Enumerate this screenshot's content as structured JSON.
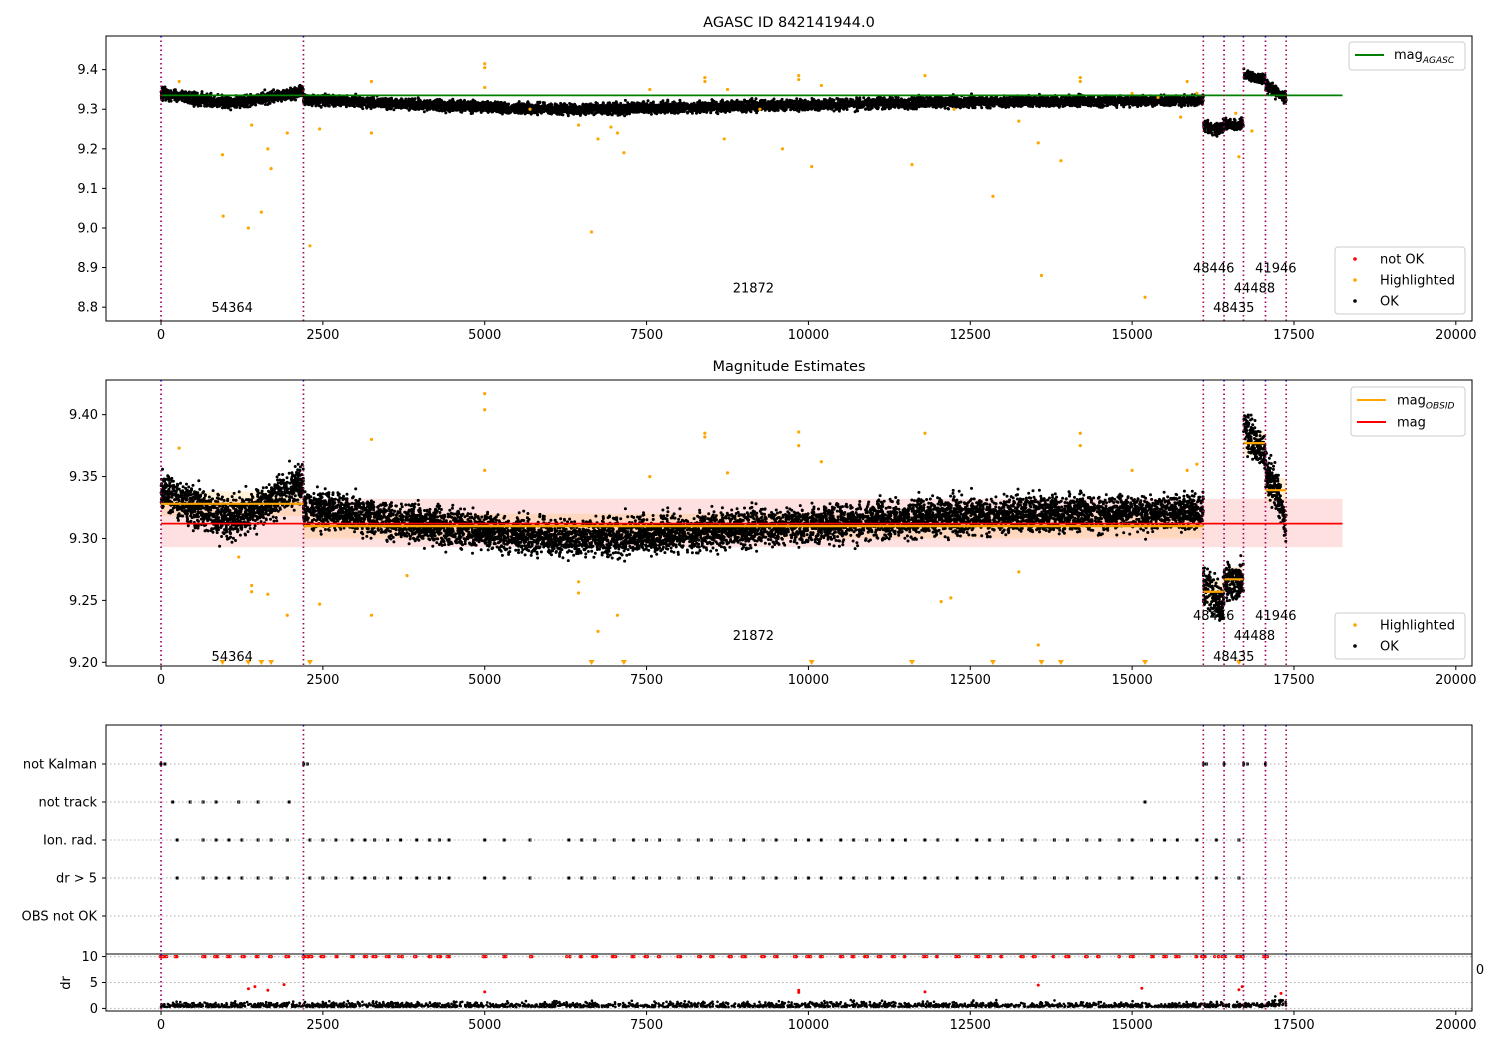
{
  "chart_data": [
    {
      "type": "scatter",
      "title": "AGASC ID 842141944.0",
      "xlim": [
        -850,
        20250
      ],
      "ylim": [
        8.765,
        9.485
      ],
      "xticks": [
        "0",
        "2500",
        "5000",
        "7500",
        "10000",
        "12500",
        "15000",
        "17500",
        "20000"
      ],
      "yticks": [
        "8.8",
        "8.9",
        "9.0",
        "9.1",
        "9.2",
        "9.3",
        "9.4"
      ],
      "hline": {
        "name": "mag",
        "sub": "AGASC",
        "value": 9.335,
        "color": "#008000",
        "x": [
          0,
          18250
        ]
      },
      "legend_line": {
        "entries": [
          {
            "name": "mag",
            "sub": "AGASC",
            "color": "#008000"
          }
        ]
      },
      "legend_points": {
        "entries": [
          {
            "name": "not OK",
            "color": "#ff0000"
          },
          {
            "name": "Highlighted",
            "color": "#ffa500"
          },
          {
            "name": "OK",
            "color": "#000000"
          }
        ]
      },
      "segments": [
        {
          "x": [
            0,
            2200
          ],
          "ok_shape": [
            9.34,
            9.325,
            9.315,
            9.33,
            9.345
          ],
          "spread": 0.012
        },
        {
          "x": [
            2200,
            16100
          ],
          "ok_shape": [
            9.325,
            9.31,
            9.3,
            9.305,
            9.312,
            9.318,
            9.32,
            9.322
          ],
          "spread": 0.011
        },
        {
          "x": [
            16100,
            16420
          ],
          "ok_shape": [
            9.26,
            9.25,
            9.255
          ],
          "spread": 0.012
        },
        {
          "x": [
            16420,
            16720
          ],
          "ok_shape": [
            9.262,
            9.258,
            9.265
          ],
          "spread": 0.01
        },
        {
          "x": [
            16720,
            17060
          ],
          "ok_shape": [
            9.39,
            9.38,
            9.375
          ],
          "spread": 0.01
        },
        {
          "x": [
            17060,
            17380
          ],
          "ok_shape": [
            9.36,
            9.345,
            9.33
          ],
          "spread": 0.012
        }
      ],
      "highlighted": [
        [
          280,
          9.37
        ],
        [
          950,
          9.185
        ],
        [
          960,
          9.03
        ],
        [
          1350,
          9.0
        ],
        [
          1400,
          9.26
        ],
        [
          1550,
          9.04
        ],
        [
          1650,
          9.2
        ],
        [
          1700,
          9.15
        ],
        [
          1950,
          9.24
        ],
        [
          2300,
          8.955
        ],
        [
          2450,
          9.25
        ],
        [
          3250,
          9.24
        ],
        [
          3250,
          9.37
        ],
        [
          5000,
          9.415
        ],
        [
          5000,
          9.405
        ],
        [
          5000,
          9.355
        ],
        [
          5700,
          9.3
        ],
        [
          6450,
          9.26
        ],
        [
          6650,
          8.99
        ],
        [
          6750,
          9.225
        ],
        [
          6950,
          9.255
        ],
        [
          7050,
          9.24
        ],
        [
          7150,
          9.19
        ],
        [
          7550,
          9.35
        ],
        [
          8400,
          9.38
        ],
        [
          8400,
          9.37
        ],
        [
          8700,
          9.225
        ],
        [
          8750,
          9.35
        ],
        [
          9250,
          9.3
        ],
        [
          9600,
          9.2
        ],
        [
          9850,
          9.385
        ],
        [
          9850,
          9.375
        ],
        [
          10050,
          9.155
        ],
        [
          10200,
          9.36
        ],
        [
          11600,
          9.16
        ],
        [
          11800,
          9.385
        ],
        [
          12250,
          9.3
        ],
        [
          12850,
          9.08
        ],
        [
          13250,
          9.27
        ],
        [
          13550,
          9.215
        ],
        [
          13600,
          8.88
        ],
        [
          13900,
          9.17
        ],
        [
          14200,
          9.38
        ],
        [
          14200,
          9.37
        ],
        [
          15000,
          9.34
        ],
        [
          15200,
          8.825
        ],
        [
          15400,
          9.33
        ],
        [
          15750,
          9.28
        ],
        [
          15850,
          9.37
        ],
        [
          16000,
          9.34
        ],
        [
          16650,
          9.18
        ],
        [
          16600,
          9.29
        ],
        [
          16850,
          9.245
        ]
      ],
      "vlines": [
        0,
        2200,
        16100,
        16420,
        16720,
        17060,
        17380
      ],
      "obs_labels": [
        {
          "text": "54364",
          "x": 1100,
          "y": 8.8
        },
        {
          "text": "21872",
          "x": 9150,
          "y": 8.85
        },
        {
          "text": "48446",
          "x": 16260,
          "y": 8.9
        },
        {
          "text": "48435",
          "x": 16570,
          "y": 8.8
        },
        {
          "text": "44488",
          "x": 16890,
          "y": 8.85
        },
        {
          "text": "41946",
          "x": 17220,
          "y": 8.9
        }
      ]
    },
    {
      "type": "scatter",
      "title": "Magnitude Estimates",
      "xlim": [
        -850,
        20250
      ],
      "ylim": [
        9.197,
        9.428
      ],
      "xticks": [
        "0",
        "2500",
        "5000",
        "7500",
        "10000",
        "12500",
        "15000",
        "17500",
        "20000"
      ],
      "yticks": [
        "9.20",
        "9.25",
        "9.30",
        "9.35",
        "9.40"
      ],
      "mag": {
        "name": "mag",
        "value": 9.312,
        "band": [
          9.293,
          9.332
        ],
        "color": "#ff0000",
        "x": [
          0,
          18250
        ]
      },
      "obsid_mag": [
        {
          "x": [
            0,
            2200
          ],
          "value": 9.328
        },
        {
          "x": [
            2200,
            16100
          ],
          "value": 9.31
        },
        {
          "x": [
            16100,
            16420
          ],
          "value": 9.257
        },
        {
          "x": [
            16420,
            16720
          ],
          "value": 9.267
        },
        {
          "x": [
            16720,
            17060
          ],
          "value": 9.377
        },
        {
          "x": [
            17060,
            17380
          ],
          "value": 9.339
        }
      ],
      "legend_line": {
        "entries": [
          {
            "name": "mag",
            "sub": "OBSID",
            "color": "#ffa500"
          },
          {
            "name": "mag",
            "sub": "",
            "color": "#ff0000"
          }
        ]
      },
      "legend_points": {
        "entries": [
          {
            "name": "Highlighted",
            "color": "#ffa500"
          },
          {
            "name": "OK",
            "color": "#000000"
          }
        ]
      },
      "segments": [
        {
          "x": [
            0,
            2200
          ],
          "ok_shape": [
            9.338,
            9.325,
            9.315,
            9.33,
            9.345
          ],
          "spread": 0.013
        },
        {
          "x": [
            2200,
            16100
          ],
          "ok_shape": [
            9.325,
            9.31,
            9.3,
            9.305,
            9.312,
            9.318,
            9.32,
            9.322
          ],
          "spread": 0.012
        },
        {
          "x": [
            16100,
            16420
          ],
          "ok_shape": [
            9.265,
            9.252,
            9.25
          ],
          "spread": 0.014
        },
        {
          "x": [
            16420,
            16720
          ],
          "ok_shape": [
            9.268,
            9.262,
            9.268
          ],
          "spread": 0.012
        },
        {
          "x": [
            16720,
            17060
          ],
          "ok_shape": [
            9.39,
            9.378,
            9.37
          ],
          "spread": 0.012
        },
        {
          "x": [
            17060,
            17380
          ],
          "ok_shape": [
            9.355,
            9.34,
            9.31
          ],
          "spread": 0.014
        }
      ],
      "highlighted": [
        [
          280,
          9.373
        ],
        [
          1200,
          9.285
        ],
        [
          1400,
          9.262
        ],
        [
          1400,
          9.257
        ],
        [
          1650,
          9.255
        ],
        [
          1950,
          9.238
        ],
        [
          2450,
          9.247
        ],
        [
          3250,
          9.38
        ],
        [
          3250,
          9.238
        ],
        [
          3800,
          9.27
        ],
        [
          5000,
          9.417
        ],
        [
          5000,
          9.404
        ],
        [
          5000,
          9.355
        ],
        [
          6450,
          9.256
        ],
        [
          6450,
          9.265
        ],
        [
          6750,
          9.225
        ],
        [
          7050,
          9.238
        ],
        [
          7550,
          9.35
        ],
        [
          8400,
          9.385
        ],
        [
          8400,
          9.382
        ],
        [
          8750,
          9.353
        ],
        [
          9850,
          9.386
        ],
        [
          9850,
          9.375
        ],
        [
          10200,
          9.362
        ],
        [
          11800,
          9.385
        ],
        [
          12050,
          9.249
        ],
        [
          12200,
          9.252
        ],
        [
          13250,
          9.273
        ],
        [
          13550,
          9.214
        ],
        [
          14200,
          9.385
        ],
        [
          14200,
          9.375
        ],
        [
          15000,
          9.355
        ],
        [
          15850,
          9.355
        ],
        [
          16000,
          9.36
        ]
      ],
      "low_markers": [
        950,
        1350,
        1550,
        1700,
        2300,
        6650,
        7150,
        10050,
        11600,
        12850,
        13600,
        13900,
        15200,
        16650
      ],
      "vlines": [
        0,
        2200,
        16100,
        16420,
        16720,
        17060,
        17380
      ],
      "obs_labels": [
        {
          "text": "54364",
          "x": 1100,
          "y": 9.205
        },
        {
          "text": "21872",
          "x": 9150,
          "y": 9.222
        },
        {
          "text": "48446",
          "x": 16260,
          "y": 9.238
        },
        {
          "text": "48435",
          "x": 16570,
          "y": 9.205
        },
        {
          "text": "44488",
          "x": 16890,
          "y": 9.222
        },
        {
          "text": "41946",
          "x": 17220,
          "y": 9.238
        }
      ]
    },
    {
      "type": "scatter",
      "title": "",
      "xlim": [
        -850,
        20250
      ],
      "categories": [
        "not Kalman",
        "not track",
        "Ion. rad.",
        "dr > 5",
        "OBS not OK"
      ],
      "flags": {
        "not Kalman": [
          0,
          60,
          2200,
          2260,
          16100,
          16150,
          16420,
          16720,
          16780,
          17060
        ],
        "not track": [
          180,
          450,
          650,
          850,
          1200,
          1500,
          1980,
          15200
        ],
        "Ion. rad.": [
          250,
          650,
          850,
          1050,
          1250,
          1500,
          1700,
          1950,
          2300,
          2500,
          2700,
          2950,
          3150,
          3300,
          3500,
          3700,
          3950,
          4150,
          4300,
          4450,
          5000,
          5300,
          5700,
          6300,
          6500,
          6700,
          7000,
          7300,
          7500,
          7700,
          8000,
          8300,
          8500,
          8800,
          9000,
          9300,
          9500,
          9800,
          10000,
          10200,
          10500,
          10700,
          10900,
          11100,
          11300,
          11500,
          11800,
          12000,
          12300,
          12600,
          12800,
          13000,
          13300,
          13500,
          13800,
          14000,
          14300,
          14500,
          14800,
          15000,
          15300,
          15500,
          15700,
          16000,
          16300,
          16650
        ],
        "dr > 5": [
          250,
          650,
          850,
          1050,
          1250,
          1500,
          1700,
          1950,
          2300,
          2500,
          2700,
          2950,
          3150,
          3300,
          3500,
          3700,
          3950,
          4150,
          4300,
          4450,
          5000,
          5300,
          5700,
          6300,
          6500,
          6700,
          7000,
          7300,
          7500,
          7700,
          8000,
          8300,
          8500,
          8800,
          9000,
          9300,
          9500,
          9800,
          10000,
          10200,
          10500,
          10700,
          10900,
          11100,
          11300,
          11500,
          11800,
          12000,
          12300,
          12600,
          12800,
          13000,
          13300,
          13500,
          13800,
          14000,
          14300,
          14500,
          14800,
          15000,
          15300,
          15500,
          15700,
          16000,
          16300,
          16650
        ],
        "OBS not OK": []
      },
      "vlines": [
        0,
        2200,
        16100,
        16420,
        16720,
        17060,
        17380
      ],
      "stray_tick_label": "0"
    },
    {
      "type": "scatter",
      "title": "",
      "xlim": [
        -850,
        20250
      ],
      "ylim": [
        -0.5,
        10.5
      ],
      "ylabel": "dr",
      "xticks": [
        "0",
        "2500",
        "5000",
        "7500",
        "10000",
        "12500",
        "15000",
        "17500",
        "20000"
      ],
      "yticks": [
        "0",
        "5",
        "10"
      ],
      "capped_at": 10,
      "ok_points_range": [
        0,
        17380
      ],
      "red_points": [
        [
          1350,
          3.8
        ],
        [
          1450,
          4.2
        ],
        [
          1650,
          3.5
        ],
        [
          1900,
          4.6
        ],
        [
          5000,
          3.2
        ],
        [
          9850,
          3.5
        ],
        [
          9850,
          3.1
        ],
        [
          11800,
          3.2
        ],
        [
          13550,
          4.5
        ],
        [
          15150,
          3.9
        ],
        [
          16650,
          3.6
        ],
        [
          16700,
          4.2
        ],
        [
          17300,
          2.9
        ]
      ],
      "vlines": [
        0,
        2200,
        16100,
        16420,
        16720,
        17060,
        17380
      ]
    }
  ]
}
